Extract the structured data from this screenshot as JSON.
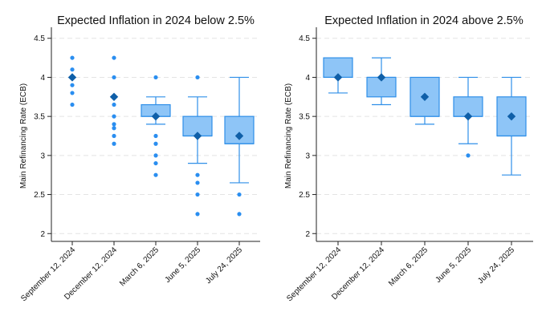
{
  "chart_data": [
    {
      "type": "box",
      "title": "Expected Inflation in 2024 below 2.5%",
      "ylabel": "Main Refinancing Rate (ECB)",
      "ylim": [
        1.9,
        4.6
      ],
      "yticks": [
        2,
        2.5,
        3,
        3.5,
        4,
        4.5
      ],
      "ytick_labels": [
        "2",
        "2.5",
        "3",
        "3.5",
        "4",
        "4.5"
      ],
      "grid": true,
      "categories": [
        "September 12, 2024",
        "December 12, 2024",
        "March 6, 2025",
        "June 5, 2025",
        "July 24, 2025"
      ],
      "boxes": [
        {
          "q1": 4.0,
          "median": 4.0,
          "q3": 4.0,
          "whisker_low": 4.0,
          "whisker_high": 4.0,
          "mean": 4.0,
          "outliers": [
            4.25,
            4.1,
            3.9,
            3.8,
            3.65
          ]
        },
        {
          "q1": 3.75,
          "median": 3.75,
          "q3": 3.75,
          "whisker_low": 3.75,
          "whisker_high": 3.75,
          "mean": 3.75,
          "outliers": [
            4.25,
            4.0,
            3.65,
            3.5,
            3.4,
            3.35,
            3.25,
            3.15
          ]
        },
        {
          "q1": 3.5,
          "median": 3.5,
          "q3": 3.65,
          "whisker_low": 3.4,
          "whisker_high": 3.75,
          "mean": 3.5,
          "outliers": [
            4.0,
            3.25,
            3.15,
            3.0,
            2.9,
            2.75
          ]
        },
        {
          "q1": 3.25,
          "median": 3.25,
          "q3": 3.5,
          "whisker_low": 2.9,
          "whisker_high": 3.75,
          "mean": 3.25,
          "outliers": [
            4.0,
            2.75,
            2.65,
            2.5,
            2.25
          ]
        },
        {
          "q1": 3.15,
          "median": 3.15,
          "q3": 3.5,
          "whisker_low": 2.65,
          "whisker_high": 4.0,
          "mean": 3.25,
          "outliers": [
            2.5,
            2.25
          ]
        }
      ]
    },
    {
      "type": "box",
      "title": "Expected Inflation in 2024 above 2.5%",
      "ylabel": "Main Refinancing Rate (ECB)",
      "ylim": [
        1.9,
        4.6
      ],
      "yticks": [
        2,
        2.5,
        3,
        3.5,
        4,
        4.5
      ],
      "ytick_labels": [
        "2",
        "2.5",
        "3",
        "3.5",
        "4",
        "4.5"
      ],
      "grid": true,
      "categories": [
        "September 12, 2024",
        "December 12, 2024",
        "March 6, 2025",
        "June 5, 2025",
        "July 24, 2025"
      ],
      "boxes": [
        {
          "q1": 4.0,
          "median": 4.0,
          "q3": 4.25,
          "whisker_low": 3.8,
          "whisker_high": 4.25,
          "mean": 4.0,
          "outliers": []
        },
        {
          "q1": 3.75,
          "median": 4.0,
          "q3": 4.0,
          "whisker_low": 3.65,
          "whisker_high": 4.25,
          "mean": 4.0,
          "outliers": []
        },
        {
          "q1": 3.5,
          "median": 3.5,
          "q3": 4.0,
          "whisker_low": 3.4,
          "whisker_high": 4.0,
          "mean": 3.75,
          "outliers": []
        },
        {
          "q1": 3.5,
          "median": 3.5,
          "q3": 3.75,
          "whisker_low": 3.15,
          "whisker_high": 4.0,
          "mean": 3.5,
          "outliers": [
            3.0
          ]
        },
        {
          "q1": 3.25,
          "median": 3.25,
          "q3": 3.75,
          "whisker_low": 2.75,
          "whisker_high": 4.0,
          "mean": 3.5,
          "outliers": []
        }
      ]
    }
  ],
  "colors": {
    "box_fill": "#8ec5f7",
    "box_stroke": "#2f8fe8",
    "outlier": "#2a8ef0",
    "mean_marker": "#0f5fa8",
    "grid": "#e4e4e4",
    "axis": "#222222"
  }
}
